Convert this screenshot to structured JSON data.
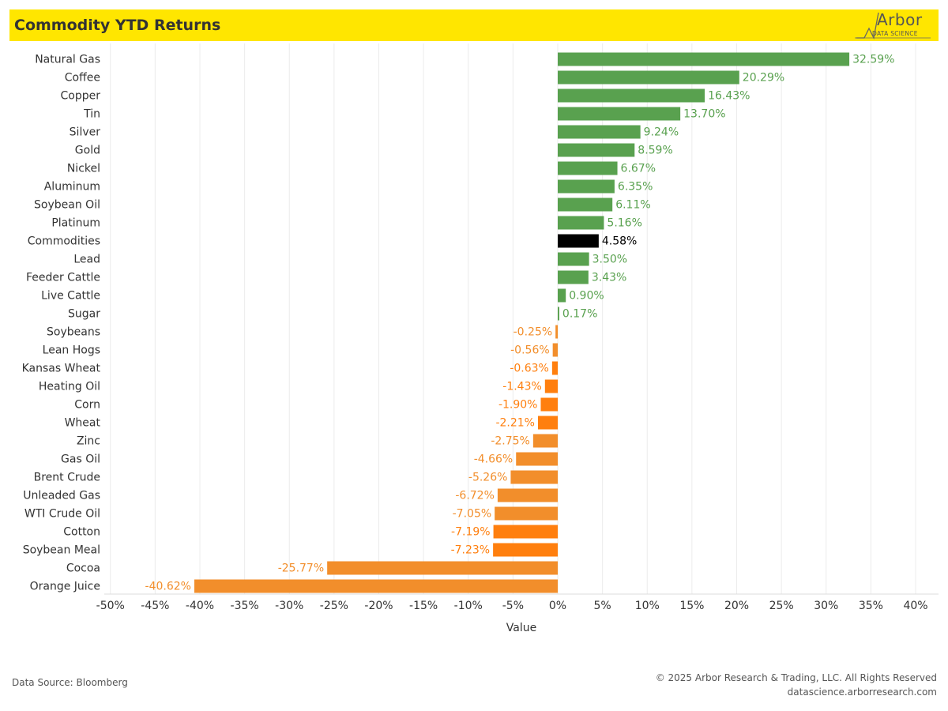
{
  "header": {
    "title": "Commodity YTD Returns",
    "logo_word": "Arbor",
    "logo_sub": "DATA SCIENCE",
    "background_color": "#ffe600"
  },
  "footer": {
    "source": "Data Source: Bloomberg",
    "copyright": "© 2025 Arbor Research & Trading, LLC. All Rights Reserved",
    "website": "datascience.arborresearch.com"
  },
  "colors": {
    "positive": "#59a14f",
    "negative": "#f28e2b",
    "negative_dark": "#ff7f0e",
    "highlight": "#000000"
  },
  "chart_data": {
    "type": "bar",
    "orientation": "horizontal",
    "xlabel": "Value",
    "xlim": [
      -50,
      40
    ],
    "x_ticks": [
      "-50%",
      "-45%",
      "-40%",
      "-35%",
      "-30%",
      "-25%",
      "-20%",
      "-15%",
      "-10%",
      "-5%",
      "0%",
      "5%",
      "10%",
      "15%",
      "20%",
      "25%",
      "30%",
      "35%",
      "40%"
    ],
    "grid": "vertical",
    "bars": [
      {
        "category": "Natural Gas",
        "value": 32.59,
        "label": "32.59%",
        "color": "#59a14f"
      },
      {
        "category": "Coffee",
        "value": 20.29,
        "label": "20.29%",
        "color": "#59a14f"
      },
      {
        "category": "Copper",
        "value": 16.43,
        "label": "16.43%",
        "color": "#59a14f"
      },
      {
        "category": "Tin",
        "value": 13.7,
        "label": "13.70%",
        "color": "#59a14f"
      },
      {
        "category": "Silver",
        "value": 9.24,
        "label": "9.24%",
        "color": "#59a14f"
      },
      {
        "category": "Gold",
        "value": 8.59,
        "label": "8.59%",
        "color": "#59a14f"
      },
      {
        "category": "Nickel",
        "value": 6.67,
        "label": "6.67%",
        "color": "#59a14f"
      },
      {
        "category": "Aluminum",
        "value": 6.35,
        "label": "6.35%",
        "color": "#59a14f"
      },
      {
        "category": "Soybean Oil",
        "value": 6.11,
        "label": "6.11%",
        "color": "#59a14f"
      },
      {
        "category": "Platinum",
        "value": 5.16,
        "label": "5.16%",
        "color": "#59a14f"
      },
      {
        "category": "Commodities",
        "value": 4.58,
        "label": "4.58%",
        "color": "#000000"
      },
      {
        "category": "Lead",
        "value": 3.5,
        "label": "3.50%",
        "color": "#59a14f"
      },
      {
        "category": "Feeder Cattle",
        "value": 3.43,
        "label": "3.43%",
        "color": "#59a14f"
      },
      {
        "category": "Live Cattle",
        "value": 0.9,
        "label": "0.90%",
        "color": "#59a14f"
      },
      {
        "category": "Sugar",
        "value": 0.17,
        "label": "0.17%",
        "color": "#59a14f"
      },
      {
        "category": "Soybeans",
        "value": -0.25,
        "label": "-0.25%",
        "color": "#f28e2b"
      },
      {
        "category": "Lean Hogs",
        "value": -0.56,
        "label": "-0.56%",
        "color": "#f28e2b"
      },
      {
        "category": "Kansas Wheat",
        "value": -0.63,
        "label": "-0.63%",
        "color": "#ff7f0e"
      },
      {
        "category": "Heating Oil",
        "value": -1.43,
        "label": "-1.43%",
        "color": "#ff7f0e"
      },
      {
        "category": "Corn",
        "value": -1.9,
        "label": "-1.90%",
        "color": "#ff7f0e"
      },
      {
        "category": "Wheat",
        "value": -2.21,
        "label": "-2.21%",
        "color": "#ff7f0e"
      },
      {
        "category": "Zinc",
        "value": -2.75,
        "label": "-2.75%",
        "color": "#f28e2b"
      },
      {
        "category": "Gas Oil",
        "value": -4.66,
        "label": "-4.66%",
        "color": "#f28e2b"
      },
      {
        "category": "Brent Crude",
        "value": -5.26,
        "label": "-5.26%",
        "color": "#f28e2b"
      },
      {
        "category": "Unleaded Gas",
        "value": -6.72,
        "label": "-6.72%",
        "color": "#f28e2b"
      },
      {
        "category": "WTI Crude Oil",
        "value": -7.05,
        "label": "-7.05%",
        "color": "#f28e2b"
      },
      {
        "category": "Cotton",
        "value": -7.19,
        "label": "-7.19%",
        "color": "#ff7f0e"
      },
      {
        "category": "Soybean Meal",
        "value": -7.23,
        "label": "-7.23%",
        "color": "#ff7f0e"
      },
      {
        "category": "Cocoa",
        "value": -25.77,
        "label": "-25.77%",
        "color": "#f28e2b"
      },
      {
        "category": "Orange Juice",
        "value": -40.62,
        "label": "-40.62%",
        "color": "#f28e2b"
      }
    ]
  }
}
